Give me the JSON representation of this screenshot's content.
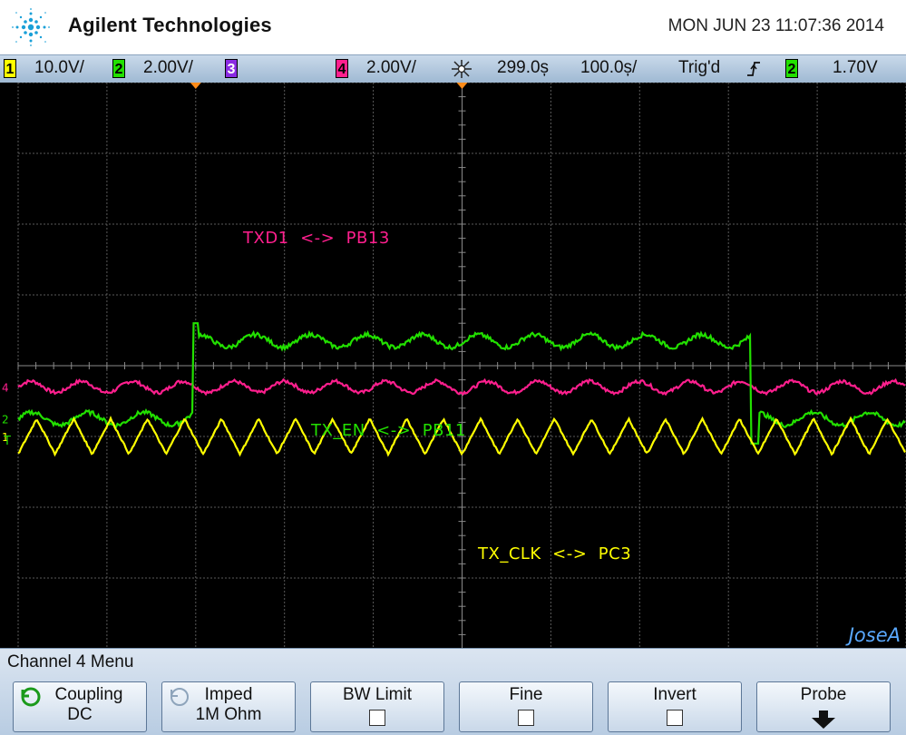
{
  "header": {
    "brand": "Agilent Technologies",
    "datetime": "MON JUN 23 11:07:36 2014"
  },
  "statusbar": {
    "ch1": {
      "number": "1",
      "scale": "10.0V/"
    },
    "ch2": {
      "number": "2",
      "scale": "2.00V/"
    },
    "ch3": {
      "number": "3",
      "scale": ""
    },
    "ch4": {
      "number": "4",
      "scale": "2.00V/"
    },
    "delay": "299.0ș",
    "timebase": "100.0ș/",
    "trigger_state": "Trig'd",
    "trigger_source": "2",
    "trigger_level": "1.70V"
  },
  "traces": [
    {
      "name": "TXD1 <-> PB13",
      "label": "TXD1  <->  PB13",
      "color": "#ff1f8e",
      "channel": "4",
      "wave": {
        "type": "noise-flat",
        "level": -0.3
      }
    },
    {
      "name": "TX_EN <-> PB11",
      "label": "TX_EN  <->  PB11",
      "color": "#22e000",
      "channel": "2",
      "wave": {
        "type": "pulse",
        "low": -0.75,
        "high": 0.35,
        "rise_div": 2.0,
        "fall_div": 8.3
      }
    },
    {
      "name": "TX_CLK <-> PC3",
      "label": "TX_CLK  <->  PC3",
      "color": "#ffff00",
      "channel": "1",
      "wave": {
        "type": "triangle",
        "center": -1.0,
        "amplitude": 0.25,
        "periods_per_div": 2.4
      }
    }
  ],
  "markers": {
    "trigger": "T"
  },
  "watermark": "JoseA",
  "menu": {
    "title": "Channel 4  Menu",
    "softkeys": [
      {
        "line1": "Coupling",
        "line2": "DC",
        "icon": "rotate-icon",
        "checkbox": false
      },
      {
        "line1": "Imped",
        "line2": "1M Ohm",
        "icon": "rotate-icon-dim",
        "checkbox": false
      },
      {
        "line1": "BW Limit",
        "line2": "",
        "checkbox": true
      },
      {
        "line1": "Fine",
        "line2": "",
        "checkbox": true
      },
      {
        "line1": "Invert",
        "line2": "",
        "checkbox": true
      },
      {
        "line1": "Probe",
        "line2": "",
        "icon": "down-arrow-icon",
        "checkbox": false
      }
    ]
  }
}
